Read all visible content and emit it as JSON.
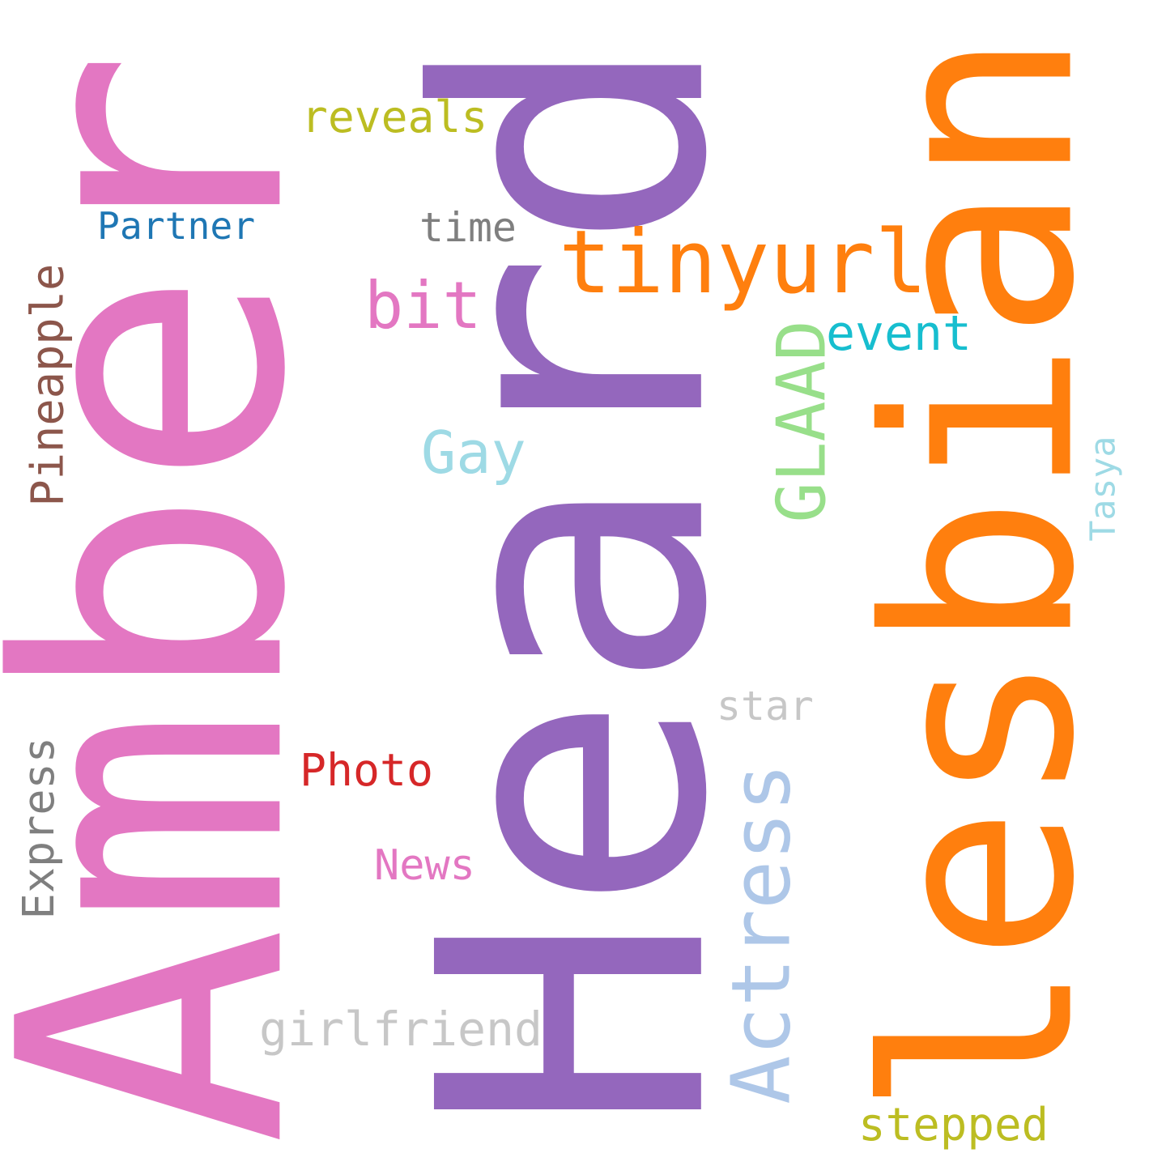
{
  "words": [
    {
      "key": "amber",
      "text": "Amber",
      "color": "#e377c2",
      "orientation": "vertical"
    },
    {
      "key": "heard",
      "text": "Heard",
      "color": "#9467bd",
      "orientation": "vertical"
    },
    {
      "key": "lesbian",
      "text": "lesbian",
      "color": "#ff7f0e",
      "orientation": "vertical"
    },
    {
      "key": "tinyurl",
      "text": "tinyurl",
      "color": "#ff7f0e",
      "orientation": "horizontal"
    },
    {
      "key": "actress",
      "text": "Actress",
      "color": "#aec7e8",
      "orientation": "vertical"
    },
    {
      "key": "bit",
      "text": "bit",
      "color": "#e377c2",
      "orientation": "horizontal"
    },
    {
      "key": "glaad",
      "text": "GLAAD",
      "color": "#98df8a",
      "orientation": "vertical"
    },
    {
      "key": "girlfriend",
      "text": "girlfriend",
      "color": "#c7c7c7",
      "orientation": "horizontal"
    },
    {
      "key": "gay",
      "text": "Gay",
      "color": "#9edae5",
      "orientation": "horizontal"
    },
    {
      "key": "pineapple",
      "text": "Pineapple",
      "color": "#8c564b",
      "orientation": "vertical"
    },
    {
      "key": "express",
      "text": "Express",
      "color": "#7f7f7f",
      "orientation": "vertical"
    },
    {
      "key": "reveals",
      "text": "reveals",
      "color": "#bcbd22",
      "orientation": "horizontal"
    },
    {
      "key": "event",
      "text": "event",
      "color": "#17becf",
      "orientation": "horizontal"
    },
    {
      "key": "stepped",
      "text": "stepped",
      "color": "#bcbd22",
      "orientation": "horizontal"
    },
    {
      "key": "photo",
      "text": "Photo",
      "color": "#d62728",
      "orientation": "horizontal"
    },
    {
      "key": "partner",
      "text": "Partner",
      "color": "#1f77b4",
      "orientation": "horizontal"
    },
    {
      "key": "time",
      "text": "time",
      "color": "#7f7f7f",
      "orientation": "horizontal"
    },
    {
      "key": "star",
      "text": "star",
      "color": "#c7c7c7",
      "orientation": "horizontal"
    },
    {
      "key": "news",
      "text": "News",
      "color": "#e377c2",
      "orientation": "horizontal"
    },
    {
      "key": "tasya",
      "text": "Tasya",
      "color": "#9edae5",
      "orientation": "vertical"
    }
  ]
}
